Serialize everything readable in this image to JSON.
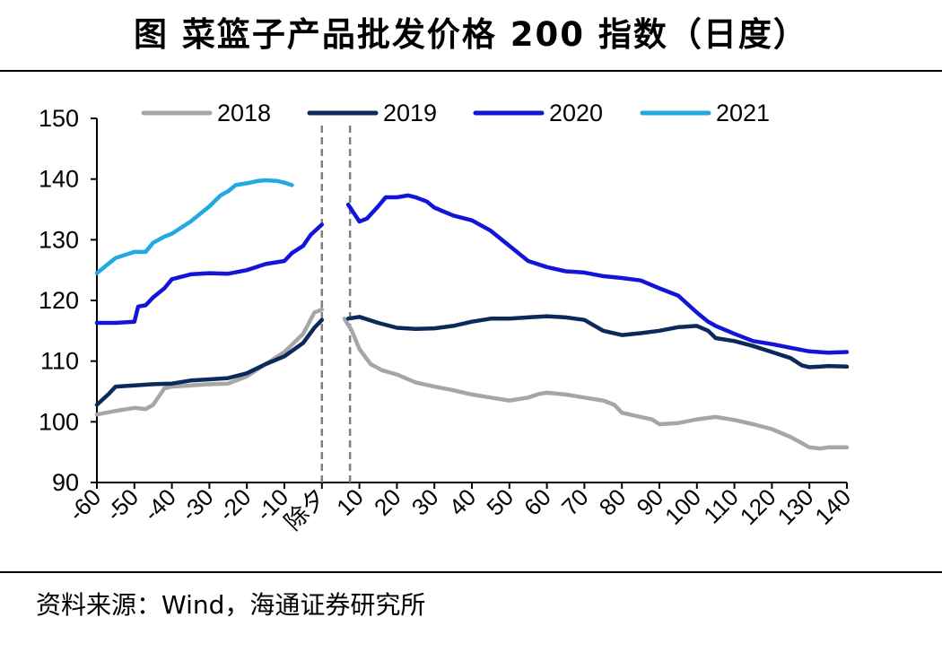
{
  "title": "图  菜篮子产品批发价格 200 指数（日度）",
  "source": "资料来源：Wind，海通证券研究所",
  "chart_data": {
    "type": "line",
    "title": "图  菜篮子产品批发价格 200 指数（日度）",
    "xlabel": "",
    "ylabel": "",
    "xlim": [
      -60,
      140
    ],
    "ylim": [
      90,
      150
    ],
    "x_ticks": [
      -60,
      -50,
      -40,
      -30,
      -20,
      -10,
      0,
      10,
      20,
      30,
      40,
      50,
      60,
      70,
      80,
      90,
      100,
      110,
      120,
      130,
      140
    ],
    "x_tick_labels": [
      "-60",
      "-50",
      "-40",
      "-30",
      "-20",
      "-10",
      "除夕",
      "10",
      "20",
      "30",
      "40",
      "50",
      "60",
      "70",
      "80",
      "90",
      "100",
      "110",
      "120",
      "130",
      "140"
    ],
    "y_ticks": [
      90,
      100,
      110,
      120,
      130,
      140,
      150
    ],
    "y_tick_labels": [
      "90",
      "100",
      "110",
      "120",
      "130",
      "140",
      "150"
    ],
    "reference_lines_x": [
      0,
      7.5
    ],
    "grid": false,
    "legend_position": "top",
    "series": [
      {
        "name": "2018",
        "color": "#a6a6a6",
        "points": [
          [
            -60,
            101.2
          ],
          [
            -55,
            101.8
          ],
          [
            -50,
            102.3
          ],
          [
            -47,
            102.1
          ],
          [
            -45,
            102.8
          ],
          [
            -42,
            105.5
          ],
          [
            -40,
            105.8
          ],
          [
            -35,
            106
          ],
          [
            -30,
            106.2
          ],
          [
            -25,
            106.3
          ],
          [
            -20,
            107.5
          ],
          [
            -15,
            109.5
          ],
          [
            -10,
            111.5
          ],
          [
            -5,
            114.5
          ],
          [
            -2,
            118
          ],
          [
            0,
            118.5
          ],
          null,
          [
            6,
            117
          ],
          [
            8,
            115
          ],
          [
            10,
            112
          ],
          [
            13,
            109.5
          ],
          [
            16,
            108.5
          ],
          [
            20,
            107.8
          ],
          [
            25,
            106.5
          ],
          [
            30,
            105.8
          ],
          [
            35,
            105.2
          ],
          [
            40,
            104.5
          ],
          [
            45,
            104
          ],
          [
            50,
            103.5
          ],
          [
            55,
            104
          ],
          [
            58,
            104.6
          ],
          [
            60,
            104.8
          ],
          [
            65,
            104.5
          ],
          [
            70,
            104
          ],
          [
            75,
            103.5
          ],
          [
            78,
            102.8
          ],
          [
            80,
            101.5
          ],
          [
            85,
            100.8
          ],
          [
            88,
            100.4
          ],
          [
            90,
            99.6
          ],
          [
            95,
            99.8
          ],
          [
            100,
            100.4
          ],
          [
            105,
            100.8
          ],
          [
            110,
            100.3
          ],
          [
            115,
            99.6
          ],
          [
            120,
            98.8
          ],
          [
            125,
            97.5
          ],
          [
            130,
            95.8
          ],
          [
            133,
            95.6
          ],
          [
            135,
            95.8
          ],
          [
            140,
            95.8
          ]
        ]
      },
      {
        "name": "2019",
        "color": "#0b2a5b",
        "points": [
          [
            -60,
            102.8
          ],
          [
            -57,
            104.5
          ],
          [
            -55,
            105.8
          ],
          [
            -50,
            106
          ],
          [
            -45,
            106.2
          ],
          [
            -40,
            106.3
          ],
          [
            -35,
            106.8
          ],
          [
            -30,
            107
          ],
          [
            -25,
            107.2
          ],
          [
            -20,
            108
          ],
          [
            -15,
            109.5
          ],
          [
            -10,
            110.8
          ],
          [
            -5,
            113
          ],
          [
            -2,
            115.5
          ],
          [
            0,
            116.8
          ],
          null,
          [
            7,
            117
          ],
          [
            10,
            117.3
          ],
          [
            15,
            116.3
          ],
          [
            20,
            115.5
          ],
          [
            25,
            115.3
          ],
          [
            30,
            115.4
          ],
          [
            35,
            115.8
          ],
          [
            40,
            116.5
          ],
          [
            45,
            117
          ],
          [
            50,
            117
          ],
          [
            55,
            117.2
          ],
          [
            60,
            117.4
          ],
          [
            65,
            117.2
          ],
          [
            70,
            116.8
          ],
          [
            75,
            115
          ],
          [
            80,
            114.3
          ],
          [
            85,
            114.6
          ],
          [
            90,
            115
          ],
          [
            95,
            115.6
          ],
          [
            100,
            115.8
          ],
          [
            103,
            115
          ],
          [
            105,
            113.8
          ],
          [
            110,
            113.3
          ],
          [
            115,
            112.5
          ],
          [
            120,
            111.5
          ],
          [
            125,
            110.5
          ],
          [
            128,
            109.3
          ],
          [
            130,
            109
          ],
          [
            133,
            109.1
          ],
          [
            135,
            109.2
          ],
          [
            140,
            109.1
          ]
        ]
      },
      {
        "name": "2020",
        "color": "#1414d8",
        "points": [
          [
            -60,
            116.3
          ],
          [
            -55,
            116.3
          ],
          [
            -50,
            116.5
          ],
          [
            -49,
            119
          ],
          [
            -47,
            119.2
          ],
          [
            -45,
            120.5
          ],
          [
            -42,
            122
          ],
          [
            -40,
            123.5
          ],
          [
            -35,
            124.3
          ],
          [
            -30,
            124.5
          ],
          [
            -25,
            124.4
          ],
          [
            -20,
            125
          ],
          [
            -15,
            126
          ],
          [
            -10,
            126.5
          ],
          [
            -8,
            127.8
          ],
          [
            -5,
            129
          ],
          [
            -3,
            130.8
          ],
          [
            0,
            132.5
          ],
          null,
          [
            7,
            135.8
          ],
          [
            10,
            133
          ],
          [
            12,
            133.5
          ],
          [
            15,
            135.5
          ],
          [
            17,
            137
          ],
          [
            20,
            137
          ],
          [
            23,
            137.3
          ],
          [
            25,
            137
          ],
          [
            28,
            136.3
          ],
          [
            30,
            135.3
          ],
          [
            35,
            134
          ],
          [
            40,
            133.2
          ],
          [
            45,
            131.5
          ],
          [
            50,
            129
          ],
          [
            55,
            126.5
          ],
          [
            60,
            125.5
          ],
          [
            65,
            124.8
          ],
          [
            70,
            124.6
          ],
          [
            75,
            124
          ],
          [
            80,
            123.7
          ],
          [
            85,
            123.3
          ],
          [
            90,
            122
          ],
          [
            95,
            120.8
          ],
          [
            100,
            118
          ],
          [
            103,
            116.5
          ],
          [
            105,
            115.8
          ],
          [
            110,
            114.5
          ],
          [
            115,
            113.3
          ],
          [
            120,
            112.8
          ],
          [
            125,
            112.2
          ],
          [
            130,
            111.6
          ],
          [
            135,
            111.4
          ],
          [
            140,
            111.5
          ]
        ]
      },
      {
        "name": "2021",
        "color": "#21a9e1",
        "points": [
          [
            -60,
            124.5
          ],
          [
            -57,
            126
          ],
          [
            -55,
            127
          ],
          [
            -50,
            128
          ],
          [
            -47,
            128
          ],
          [
            -45,
            129.5
          ],
          [
            -42,
            130.5
          ],
          [
            -40,
            131
          ],
          [
            -35,
            133
          ],
          [
            -30,
            135.5
          ],
          [
            -27,
            137.3
          ],
          [
            -25,
            138
          ],
          [
            -23,
            139
          ],
          [
            -20,
            139.3
          ],
          [
            -17,
            139.7
          ],
          [
            -15,
            139.8
          ],
          [
            -12,
            139.7
          ],
          [
            -10,
            139.4
          ],
          [
            -8,
            139
          ]
        ]
      }
    ]
  }
}
